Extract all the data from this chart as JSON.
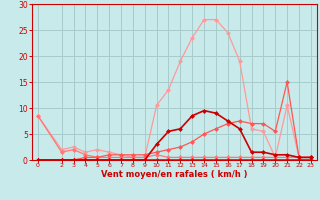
{
  "background_color": "#c8eaea",
  "grid_color": "#a8cccc",
  "line_light_pink": {
    "x": [
      0,
      2,
      3,
      4,
      5,
      6,
      7,
      8,
      9,
      10,
      11,
      12,
      13,
      14,
      15,
      16,
      17,
      18,
      19,
      20,
      21,
      22,
      23
    ],
    "y": [
      8.5,
      2,
      2.5,
      1.5,
      2,
      1.5,
      1,
      0.5,
      0.5,
      10.5,
      13.5,
      19,
      23.5,
      27,
      27,
      24.5,
      19,
      6,
      5.5,
      0.5,
      10.5,
      0.5,
      0.5
    ],
    "color": "#ff9999",
    "linewidth": 0.9,
    "markersize": 2.5
  },
  "line_medium_pink": {
    "x": [
      0,
      2,
      3,
      4,
      5,
      6,
      7,
      8,
      9,
      10,
      11,
      12,
      13,
      14,
      15,
      16,
      17,
      18,
      19,
      20,
      21,
      22,
      23
    ],
    "y": [
      8.5,
      1.5,
      2,
      1,
      0.5,
      0.5,
      0.5,
      0.5,
      0.5,
      1,
      0.5,
      0.5,
      0.5,
      0.5,
      0.5,
      0.5,
      0.5,
      0.5,
      0.5,
      0.5,
      0.5,
      0.5,
      0.5
    ],
    "color": "#ff7777",
    "linewidth": 0.9,
    "markersize": 2.5
  },
  "line_salmon": {
    "x": [
      0,
      2,
      3,
      4,
      5,
      6,
      7,
      8,
      9,
      10,
      11,
      12,
      13,
      14,
      15,
      16,
      17,
      18,
      19,
      20,
      21,
      22,
      23
    ],
    "y": [
      0,
      0,
      0,
      0.5,
      0.5,
      1,
      1,
      1,
      1,
      1.5,
      2,
      2.5,
      3.5,
      5,
      6,
      7,
      7.5,
      7,
      7,
      5.5,
      15,
      0.5,
      0.5
    ],
    "color": "#ff5555",
    "linewidth": 0.9,
    "markersize": 2.5
  },
  "line_dark_red": {
    "x": [
      0,
      2,
      3,
      4,
      5,
      6,
      7,
      8,
      9,
      10,
      11,
      12,
      13,
      14,
      15,
      16,
      17,
      18,
      19,
      20,
      21,
      22,
      23
    ],
    "y": [
      0,
      0,
      0,
      0,
      0,
      0,
      0,
      0,
      0,
      3,
      5.5,
      6,
      8.5,
      9.5,
      9,
      7.5,
      6,
      1.5,
      1.5,
      1,
      1,
      0.5,
      0.5
    ],
    "color": "#cc0000",
    "linewidth": 1.2,
    "markersize": 2.5
  },
  "line_flat": {
    "x": [
      0,
      2,
      3,
      4,
      5,
      6,
      7,
      8,
      9,
      10,
      11,
      12,
      13,
      14,
      15,
      16,
      17,
      18,
      19,
      20,
      21,
      22,
      23
    ],
    "y": [
      0,
      0,
      0,
      0,
      0,
      0,
      0,
      0,
      0,
      0,
      0,
      0,
      0,
      0,
      0,
      0,
      0,
      0,
      0,
      0,
      0,
      0,
      0
    ],
    "color": "#ff0000",
    "linewidth": 1.2,
    "markersize": 2.5
  },
  "xlabel": "Vent moyen/en rafales ( km/h )",
  "ylim": [
    0,
    30
  ],
  "xlim": [
    -0.5,
    23.5
  ],
  "yticks": [
    0,
    5,
    10,
    15,
    20,
    25,
    30
  ],
  "xticks": [
    0,
    2,
    3,
    4,
    5,
    6,
    7,
    8,
    9,
    10,
    11,
    12,
    13,
    14,
    15,
    16,
    17,
    18,
    19,
    20,
    21,
    22,
    23
  ],
  "tick_color": "#cc0000",
  "spine_color": "#cc0000",
  "label_color": "#cc0000"
}
